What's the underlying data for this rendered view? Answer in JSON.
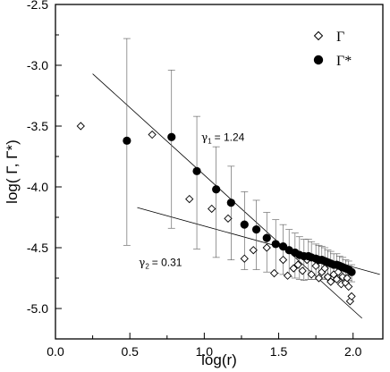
{
  "chart_data": {
    "type": "scatter",
    "xlabel": "log(r)",
    "ylabel": "log( Γ, Γ*)",
    "xlim": [
      0.0,
      2.2
    ],
    "ylim": [
      -5.25,
      -2.5
    ],
    "x_ticks": [
      0.0,
      0.5,
      1.0,
      1.5,
      2.0
    ],
    "x_tick_labels": [
      "0.0",
      "0.5",
      "1.0",
      "1.5",
      "2.0"
    ],
    "y_ticks": [
      -5.0,
      -4.5,
      -4.0,
      -3.5,
      -3.0,
      -2.5
    ],
    "y_tick_labels": [
      "-5.0",
      "-4.5",
      "-4.0",
      "-3.5",
      "-3.0",
      "-2.5"
    ],
    "grid": false,
    "legend_position": "top-right",
    "series": [
      {
        "name": "Γ",
        "marker": "open-diamond",
        "x": [
          0.17,
          0.65,
          0.9,
          1.05,
          1.16,
          1.27,
          1.33,
          1.42,
          1.47,
          1.53,
          1.56,
          1.6,
          1.63,
          1.66,
          1.69,
          1.72,
          1.75,
          1.77,
          1.79,
          1.81,
          1.83,
          1.85,
          1.87,
          1.89,
          1.9,
          1.92,
          1.93,
          1.95,
          1.96,
          1.97,
          1.98,
          1.99
        ],
        "y": [
          -3.5,
          -3.57,
          -4.1,
          -4.18,
          -4.26,
          -4.59,
          -4.52,
          -4.5,
          -4.71,
          -4.6,
          -4.73,
          -4.67,
          -4.64,
          -4.69,
          -4.6,
          -4.72,
          -4.65,
          -4.75,
          -4.7,
          -4.67,
          -4.74,
          -4.78,
          -4.72,
          -4.76,
          -4.7,
          -4.8,
          -4.74,
          -4.79,
          -4.75,
          -4.82,
          -4.94,
          -4.9
        ]
      },
      {
        "name": "Γ*",
        "marker": "filled-circle",
        "x": [
          0.48,
          0.78,
          0.95,
          1.08,
          1.18,
          1.27,
          1.35,
          1.42,
          1.48,
          1.53,
          1.57,
          1.61,
          1.64,
          1.67,
          1.7,
          1.72,
          1.75,
          1.77,
          1.79,
          1.81,
          1.83,
          1.85,
          1.87,
          1.89,
          1.91,
          1.93,
          1.95,
          1.97,
          1.99
        ],
        "y": [
          -3.62,
          -3.59,
          -3.87,
          -4.02,
          -4.13,
          -4.31,
          -4.35,
          -4.42,
          -4.47,
          -4.49,
          -4.52,
          -4.54,
          -4.56,
          -4.57,
          -4.57,
          -4.58,
          -4.59,
          -4.6,
          -4.6,
          -4.61,
          -4.62,
          -4.63,
          -4.64,
          -4.64,
          -4.65,
          -4.66,
          -4.67,
          -4.68,
          -4.7
        ],
        "y_err_upper": [
          0.84,
          0.55,
          0.45,
          0.35,
          0.3,
          0.27,
          0.24,
          0.21,
          0.2,
          0.18,
          0.17,
          0.16,
          0.15,
          0.14,
          0.14,
          0.13,
          0.12,
          0.12,
          0.11,
          0.11,
          0.1,
          0.1,
          0.09,
          0.09,
          0.08,
          0.08,
          0.07,
          0.07,
          0.06
        ],
        "y_err_lower": [
          0.86,
          0.75,
          0.64,
          0.56,
          0.47,
          0.37,
          0.33,
          0.28,
          0.24,
          0.23,
          0.22,
          0.21,
          0.2,
          0.2,
          0.19,
          0.18,
          0.17,
          0.16,
          0.15,
          0.15,
          0.14,
          0.13,
          0.12,
          0.12,
          0.11,
          0.1,
          0.1,
          0.09,
          0.08
        ]
      }
    ],
    "fit_lines": [
      {
        "label": "γ",
        "subscript": "1",
        "value": "= 1.24",
        "x": [
          0.25,
          2.06
        ],
        "y": [
          -3.07,
          -5.08
        ]
      },
      {
        "label": "γ",
        "subscript": "2",
        "value": "= 0.31",
        "x": [
          0.55,
          2.18
        ],
        "y": [
          -4.17,
          -4.72
        ]
      }
    ],
    "fit_label_positions": [
      {
        "x": 0.98,
        "y": -3.62
      },
      {
        "x": 0.56,
        "y": -4.65
      }
    ]
  }
}
